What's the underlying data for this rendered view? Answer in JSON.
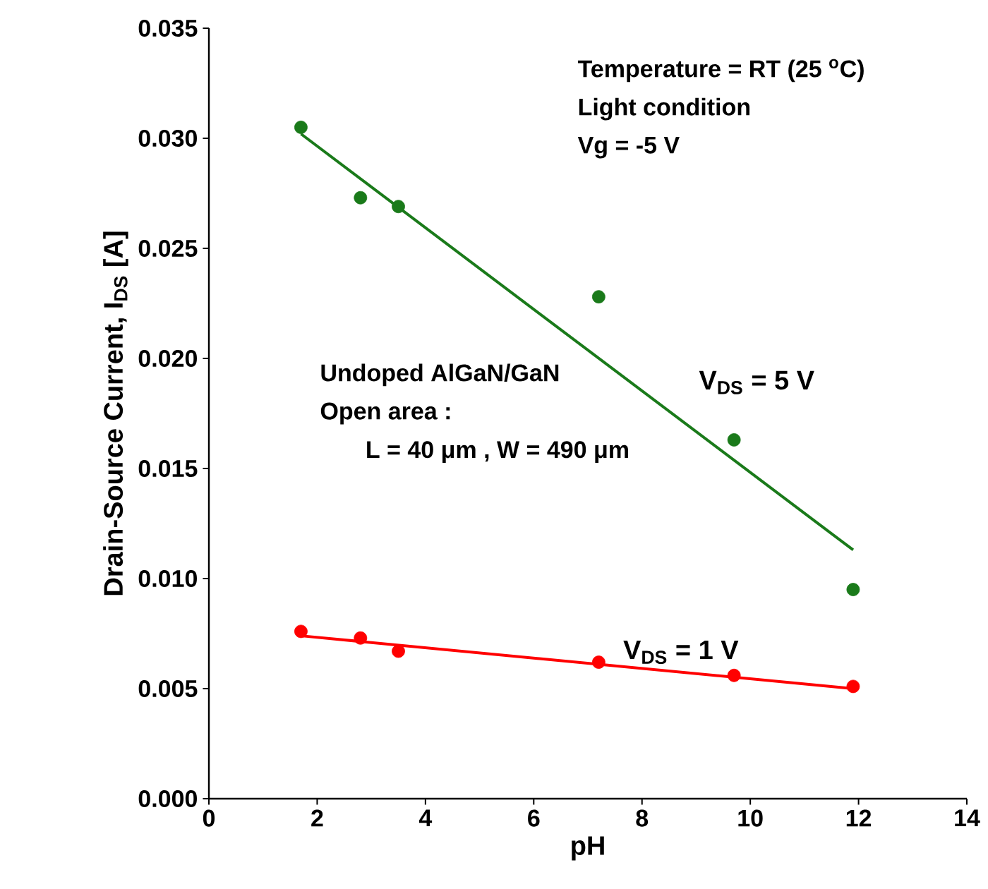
{
  "chart_data": {
    "type": "scatter",
    "xlabel": "pH",
    "ylabel": "Drain-Source Current, I$_{DS}$ [A]",
    "xlim": [
      0,
      14
    ],
    "xticks": [
      0,
      2,
      4,
      6,
      8,
      10,
      12,
      14
    ],
    "ylim": [
      0,
      0.035
    ],
    "yticks": [
      {
        "value": 0,
        "label": "0.000"
      },
      {
        "value": 0.005,
        "label": "0.005"
      },
      {
        "value": 0.01,
        "label": "0.010"
      },
      {
        "value": 0.015,
        "label": "0.015"
      },
      {
        "value": 0.02,
        "label": "0.020"
      },
      {
        "value": 0.025,
        "label": "0.025"
      },
      {
        "value": 0.03,
        "label": "0.030"
      },
      {
        "value": 0.035,
        "label": "0.035"
      }
    ],
    "grid": false,
    "legend": false,
    "series": [
      {
        "name": "V$_{DS}$ = 5 V",
        "marker": "circle",
        "color": "#1a7a1a",
        "x": [
          1.7,
          2.8,
          3.5,
          7.2,
          9.7,
          11.9
        ],
        "values": [
          0.0305,
          0.0273,
          0.0269,
          0.0228,
          0.0163,
          0.0095
        ]
      },
      {
        "type": "line",
        "marker": "none",
        "color": "#1a7a1a",
        "x": [
          1.7,
          11.9
        ],
        "values": [
          0.0302,
          0.0113
        ]
      },
      {
        "name": "V$_{DS}$ = 1 V",
        "marker": "circle",
        "color": "#ff0000",
        "x": [
          1.7,
          2.8,
          3.5,
          7.2,
          9.7,
          11.9
        ],
        "values": [
          0.0076,
          0.0073,
          0.0067,
          0.0062,
          0.0056,
          0.0051
        ]
      },
      {
        "type": "line",
        "marker": "none",
        "color": "#ff0000",
        "x": [
          1.7,
          11.9
        ],
        "values": [
          0.0074,
          0.005
        ]
      }
    ],
    "annotations": [
      "Temperature = RT (25 $^{o}$C)",
      "Light condition",
      "Vg = -5 V",
      "Undoped AlGaN/GaN",
      "Open area :",
      "L = 40 μm , W = 490 μm"
    ]
  }
}
